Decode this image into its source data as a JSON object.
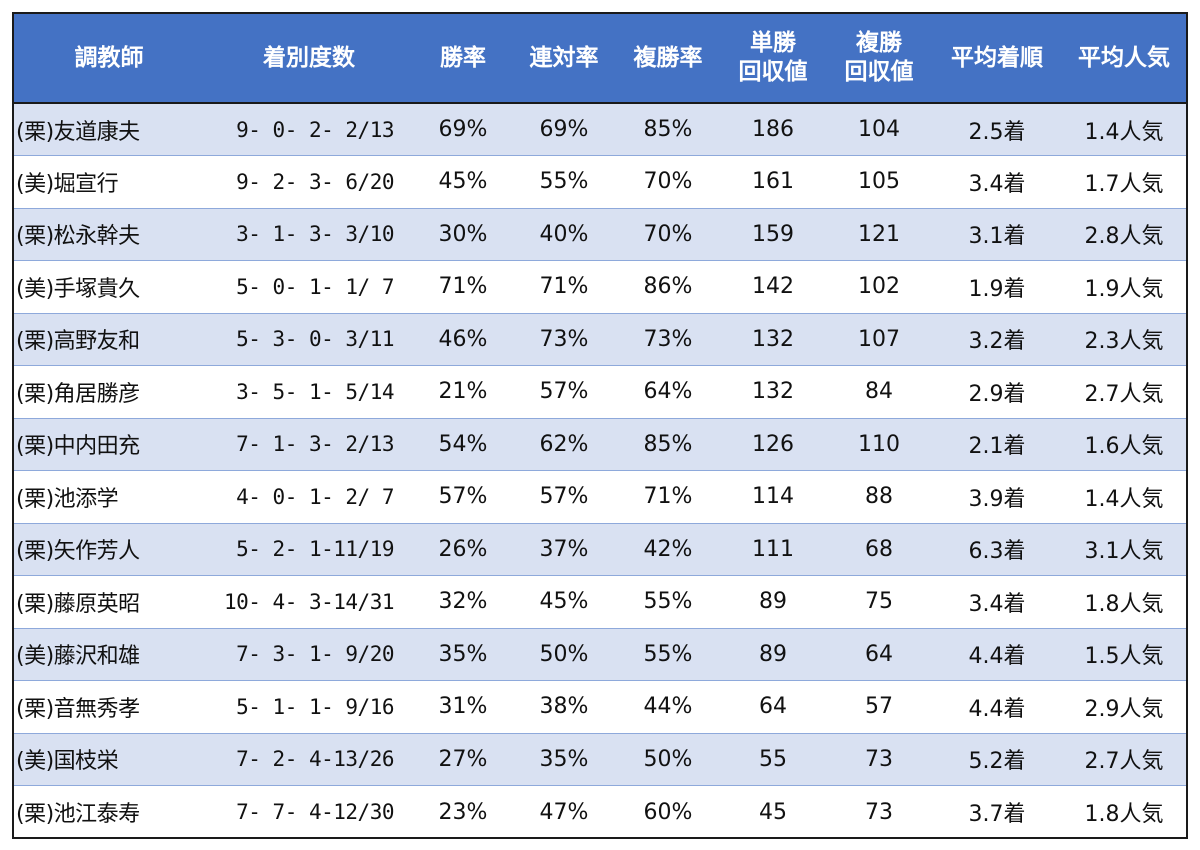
{
  "table": {
    "headers": [
      [
        "調教師"
      ],
      [
        "着別度数"
      ],
      [
        "勝率"
      ],
      [
        "連対率"
      ],
      [
        "複勝率"
      ],
      [
        "単勝",
        "回収値"
      ],
      [
        "複勝",
        "回収値"
      ],
      [
        "平均着順"
      ],
      [
        "平均人気"
      ]
    ],
    "rows": [
      [
        "(栗)友道康夫",
        " 9- 0- 2- 2/13",
        "69%",
        "69%",
        "85%",
        "186",
        "104",
        "2.5着",
        "1.4人気"
      ],
      [
        "(美)堀宣行",
        " 9- 2- 3- 6/20",
        "45%",
        "55%",
        "70%",
        "161",
        "105",
        "3.4着",
        "1.7人気"
      ],
      [
        "(栗)松永幹夫",
        " 3- 1- 3- 3/10",
        "30%",
        "40%",
        "70%",
        "159",
        "121",
        "3.1着",
        "2.8人気"
      ],
      [
        "(美)手塚貴久",
        " 5- 0- 1- 1/ 7",
        "71%",
        "71%",
        "86%",
        "142",
        "102",
        "1.9着",
        "1.9人気"
      ],
      [
        "(栗)高野友和",
        " 5- 3- 0- 3/11",
        "46%",
        "73%",
        "73%",
        "132",
        "107",
        "3.2着",
        "2.3人気"
      ],
      [
        "(栗)角居勝彦",
        " 3- 5- 1- 5/14",
        "21%",
        "57%",
        "64%",
        "132",
        "84",
        "2.9着",
        "2.7人気"
      ],
      [
        "(栗)中内田充",
        " 7- 1- 3- 2/13",
        "54%",
        "62%",
        "85%",
        "126",
        "110",
        "2.1着",
        "1.6人気"
      ],
      [
        "(栗)池添学",
        " 4- 0- 1- 2/ 7",
        "57%",
        "57%",
        "71%",
        "114",
        "88",
        "3.9着",
        "1.4人気"
      ],
      [
        "(栗)矢作芳人",
        " 5- 2- 1-11/19",
        "26%",
        "37%",
        "42%",
        "111",
        "68",
        "6.3着",
        "3.1人気"
      ],
      [
        "(栗)藤原英昭",
        "10- 4- 3-14/31",
        "32%",
        "45%",
        "55%",
        "89",
        "75",
        "3.4着",
        "1.8人気"
      ],
      [
        "(美)藤沢和雄",
        " 7- 3- 1- 9/20",
        "35%",
        "50%",
        "55%",
        "89",
        "64",
        "4.4着",
        "1.5人気"
      ],
      [
        "(栗)音無秀孝",
        " 5- 1- 1- 9/16",
        "31%",
        "38%",
        "44%",
        "64",
        "57",
        "4.4着",
        "2.9人気"
      ],
      [
        "(美)国枝栄",
        " 7- 2- 4-13/26",
        "27%",
        "35%",
        "50%",
        "55",
        "73",
        "5.2着",
        "2.7人気"
      ],
      [
        "(栗)池江泰寿",
        " 7- 7- 4-12/30",
        "23%",
        "47%",
        "60%",
        "45",
        "73",
        "3.7着",
        "1.8人気"
      ]
    ]
  },
  "colors": {
    "header_bg": "#4472c4",
    "header_text": "#ffffff",
    "band_row": "#d9e1f2",
    "plain_row": "#ffffff",
    "row_border": "#8ea9db",
    "outer_border": "#1a1a1a"
  }
}
